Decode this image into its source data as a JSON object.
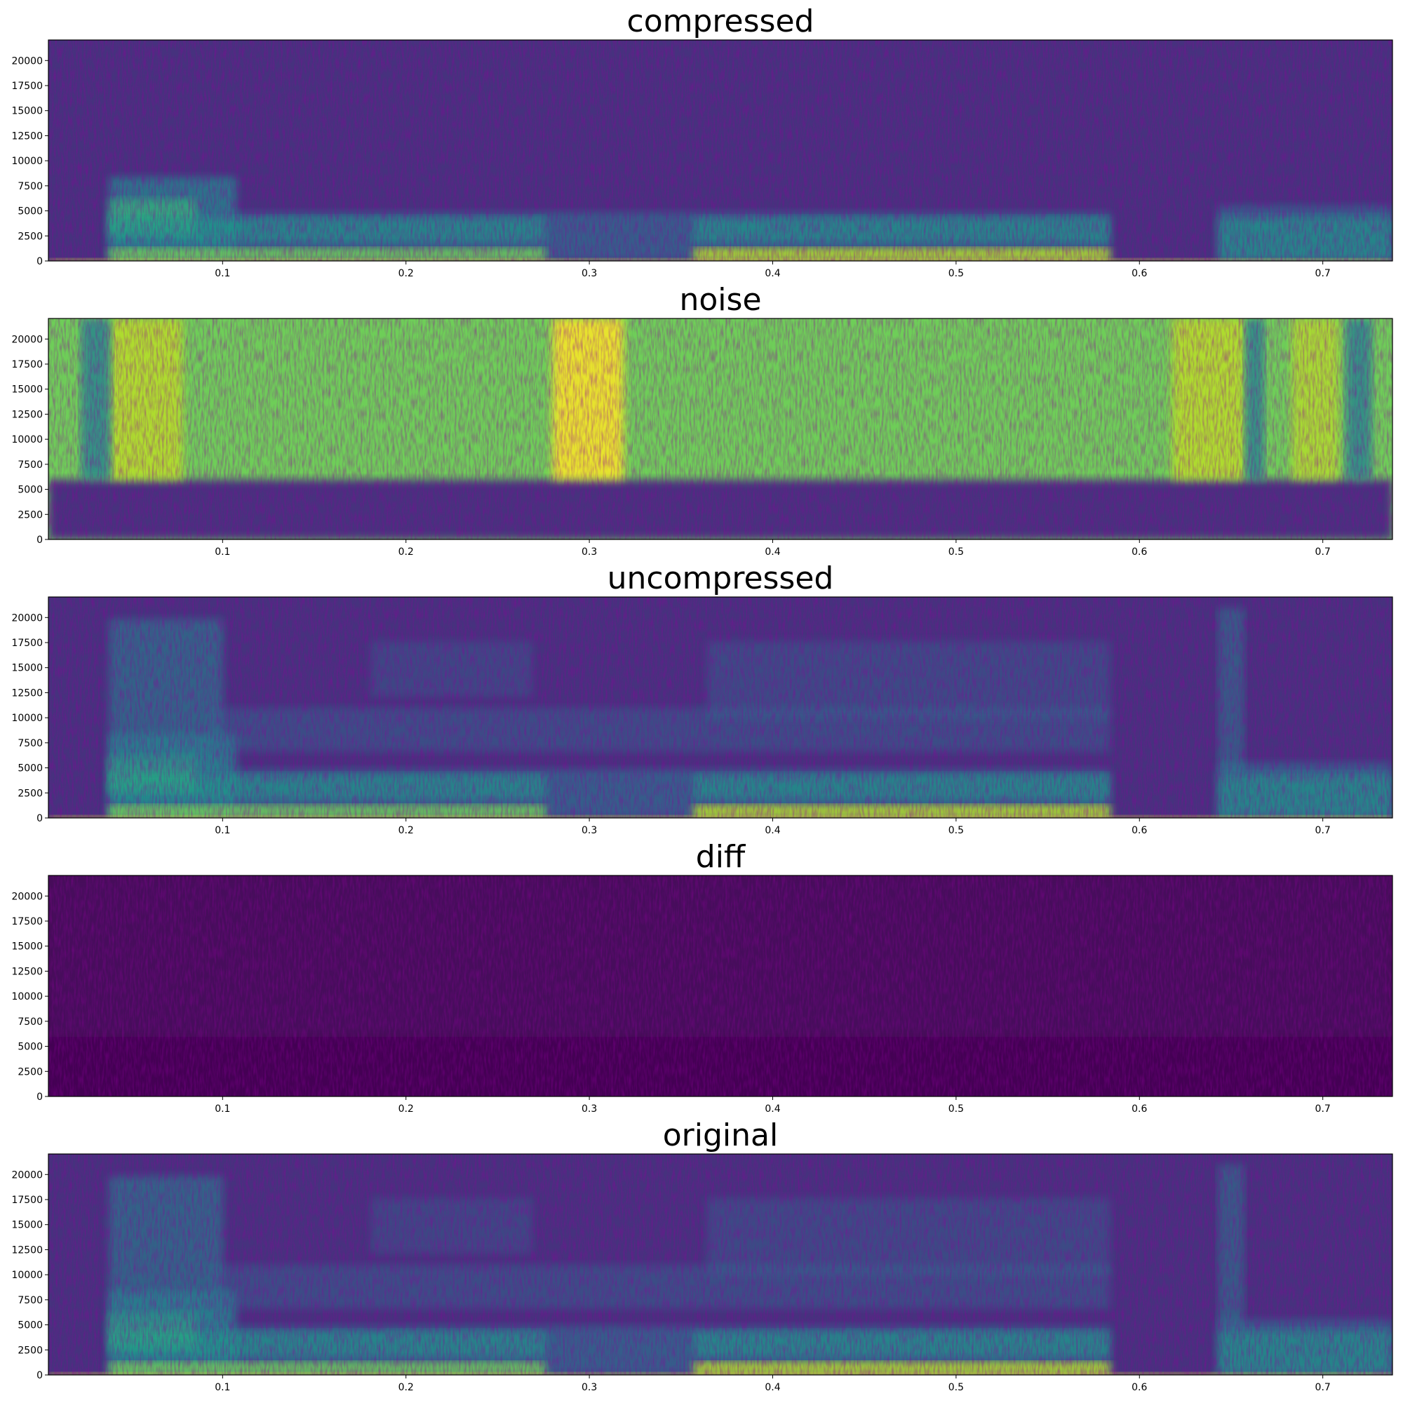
{
  "chart_data": [
    {
      "type": "spectrogram",
      "title": "compressed",
      "xlim": [
        0.005,
        0.738
      ],
      "ylim": [
        0,
        22050
      ],
      "xticks": [
        0.1,
        0.2,
        0.3,
        0.4,
        0.5,
        0.6,
        0.7
      ],
      "yticks": [
        0,
        2500,
        5000,
        7500,
        10000,
        12500,
        15000,
        17500,
        20000
      ]
    },
    {
      "type": "spectrogram",
      "title": "noise",
      "xlim": [
        0.005,
        0.738
      ],
      "ylim": [
        0,
        22050
      ],
      "xticks": [
        0.1,
        0.2,
        0.3,
        0.4,
        0.5,
        0.6,
        0.7
      ],
      "yticks": [
        0,
        2500,
        5000,
        7500,
        10000,
        12500,
        15000,
        17500,
        20000
      ]
    },
    {
      "type": "spectrogram",
      "title": "uncompressed",
      "xlim": [
        0.005,
        0.738
      ],
      "ylim": [
        0,
        22050
      ],
      "xticks": [
        0.1,
        0.2,
        0.3,
        0.4,
        0.5,
        0.6,
        0.7
      ],
      "yticks": [
        0,
        2500,
        5000,
        7500,
        10000,
        12500,
        15000,
        17500,
        20000
      ]
    },
    {
      "type": "spectrogram",
      "title": "diff",
      "xlim": [
        0.005,
        0.738
      ],
      "ylim": [
        0,
        22050
      ],
      "xticks": [
        0.1,
        0.2,
        0.3,
        0.4,
        0.5,
        0.6,
        0.7
      ],
      "yticks": [
        0,
        2500,
        5000,
        7500,
        10000,
        12500,
        15000,
        17500,
        20000
      ]
    },
    {
      "type": "spectrogram",
      "title": "original",
      "xlim": [
        0.005,
        0.738
      ],
      "ylim": [
        0,
        22050
      ],
      "xticks": [
        0.1,
        0.2,
        0.3,
        0.4,
        0.5,
        0.6,
        0.7
      ],
      "yticks": [
        0,
        2500,
        5000,
        7500,
        10000,
        12500,
        15000,
        17500,
        20000
      ]
    }
  ]
}
